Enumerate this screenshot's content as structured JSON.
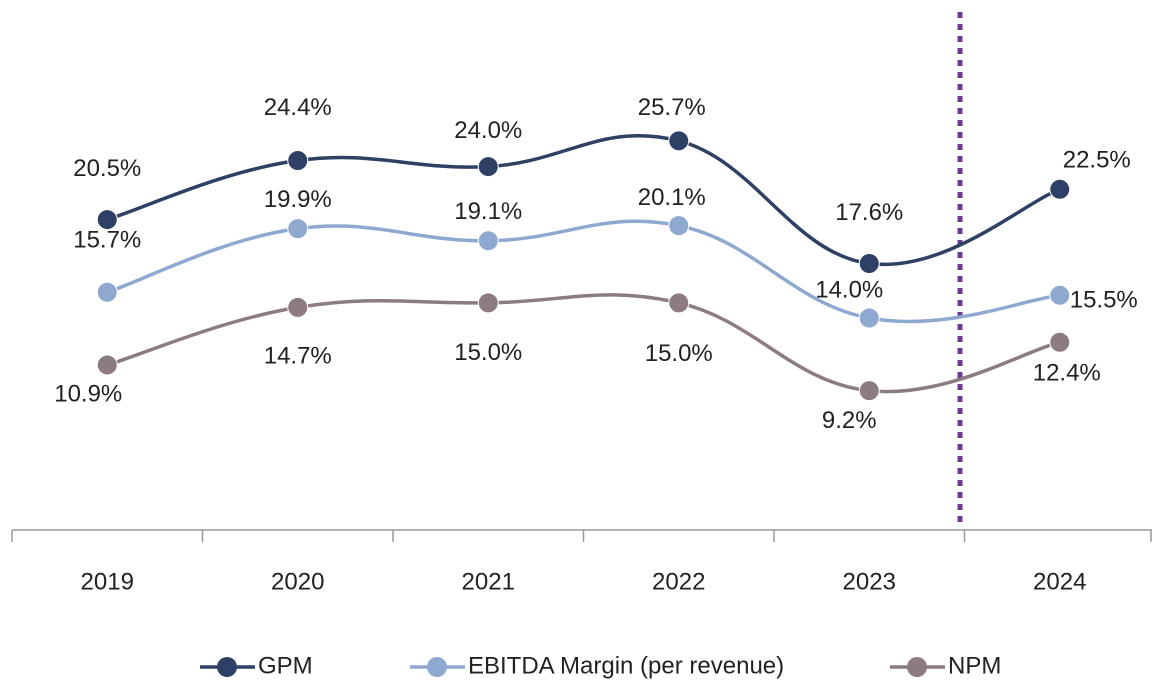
{
  "chart_data": {
    "type": "line",
    "categories": [
      "2019",
      "2020",
      "2021",
      "2022",
      "2023",
      "2024"
    ],
    "series": [
      {
        "name": "GPM",
        "color": "#2e4063",
        "values": [
          20.5,
          24.4,
          24.0,
          25.7,
          17.6,
          22.5
        ],
        "value_labels": [
          "20.5%",
          "24.4%",
          "24.0%",
          "25.7%",
          "17.6%",
          "22.5%"
        ]
      },
      {
        "name": "EBITDA Margin (per revenue)",
        "color": "#8fa8d0",
        "values": [
          15.7,
          19.9,
          19.1,
          20.1,
          14.0,
          15.5
        ],
        "value_labels": [
          "15.7%",
          "19.9%",
          "19.1%",
          "20.1%",
          "14.0%",
          "15.5%"
        ]
      },
      {
        "name": "NPM",
        "color": "#8c7b80",
        "values": [
          10.9,
          14.7,
          15.0,
          15.0,
          9.2,
          12.4
        ],
        "value_labels": [
          "10.9%",
          "14.7%",
          "15.0%",
          "15.0%",
          "9.2%",
          "12.4%"
        ]
      }
    ],
    "ylim": [
      0,
      35
    ]
  }
}
